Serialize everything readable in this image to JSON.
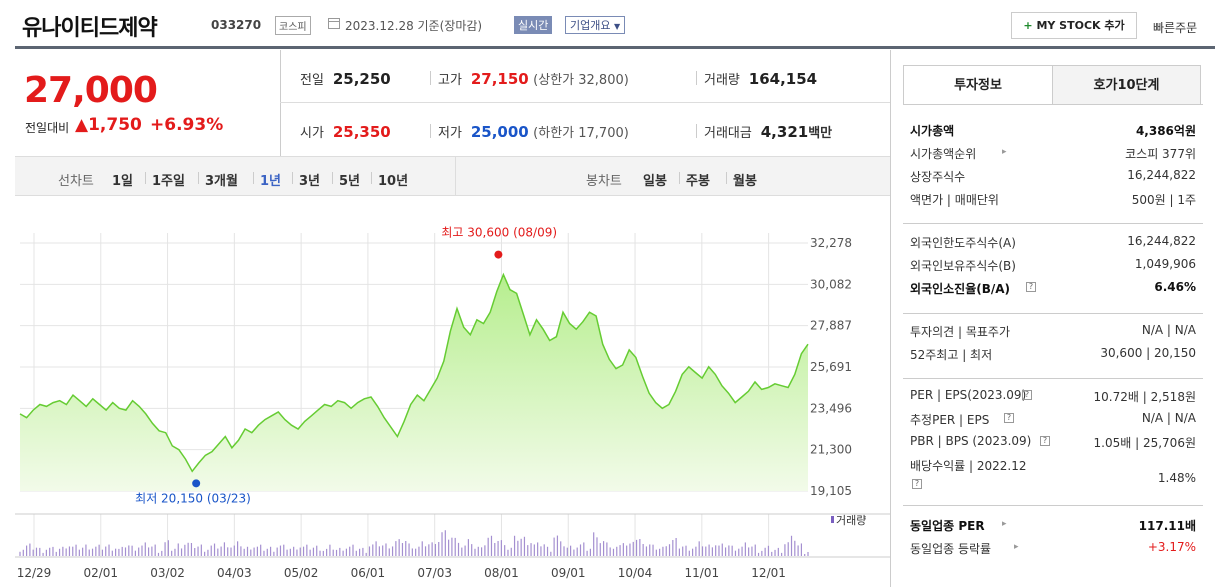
{
  "header": {
    "company_name": "유나이티드제약",
    "code": "033270",
    "market": "코스피",
    "basis": "2023.12.28  기준(장마감)",
    "realtime": "실시간",
    "overview": "기업개요",
    "my_stock": "MY STOCK 추가",
    "quick_order": "빠른주문"
  },
  "quote": {
    "price": "27,000",
    "change_label": "전일대비",
    "change_value": "1,750",
    "change_pct": "+6.93%",
    "prev_label": "전일",
    "prev": "25,250",
    "high_label": "고가",
    "high": "27,150",
    "upper_limit": "(상한가 32,800)",
    "volume_label": "거래량",
    "volume": "164,154",
    "open_label": "시가",
    "open": "25,350",
    "low_label": "저가",
    "low": "25,000",
    "lower_limit": "(하한가 17,700)",
    "amount_label": "거래대금",
    "amount": "4,321",
    "amount_unit": "백만"
  },
  "period_bar": {
    "line_label": "선차트",
    "line_items": [
      "1일",
      "1주일",
      "3개월",
      "1년",
      "3년",
      "5년",
      "10년"
    ],
    "selected": "1년",
    "candle_label": "봉차트",
    "candle_items": [
      "일봉",
      "주봉",
      "월봉"
    ]
  },
  "chart_data": {
    "type": "area",
    "y_ticks": [
      "32,278",
      "30,082",
      "27,887",
      "25,691",
      "23,496",
      "21,300",
      "19,105"
    ],
    "ylim": [
      19105,
      32278
    ],
    "x_ticks": [
      "12/29",
      "02/01",
      "03/02",
      "04/03",
      "05/02",
      "06/01",
      "07/03",
      "08/01",
      "09/01",
      "10/04",
      "11/01",
      "12/01"
    ],
    "high_label": "최고 30,600 (08/09)",
    "low_label": "최저 20,150 (03/23)",
    "volume_label": "거래량",
    "series": [
      {
        "values": [
          23200,
          23000,
          23400,
          23700,
          23600,
          23800,
          23900,
          23700,
          24200,
          23900,
          23600,
          24000,
          23700,
          23400,
          23800,
          23500,
          23400,
          23900,
          23600,
          23200,
          22700,
          22300,
          22200,
          21500,
          21300,
          20800,
          20150,
          20600,
          21000,
          21200,
          21600,
          22000,
          21400,
          21800,
          22400,
          22200,
          22600,
          22900,
          23100,
          23300,
          22900,
          22600,
          22400,
          22800,
          23100,
          23400,
          23700,
          23600,
          23900,
          23800,
          23500,
          23800,
          24000,
          24100,
          23600,
          23000,
          22500,
          22000,
          22800,
          23700,
          24200,
          23900,
          24500,
          25100,
          26000,
          27600,
          28800,
          27800,
          27400,
          28200,
          28000,
          28600,
          29700,
          30600,
          29800,
          29600,
          28500,
          27400,
          28200,
          27700,
          27100,
          27300,
          28600,
          28000,
          27700,
          28100,
          28600,
          28400,
          26900,
          26100,
          25600,
          25800,
          26600,
          26200,
          25200,
          24300,
          23800,
          23500,
          23700,
          24400,
          25300,
          25700,
          25400,
          25100,
          25700,
          25300,
          24700,
          24300,
          23800,
          24100,
          24400,
          24900,
          24500,
          24600,
          24800,
          24700,
          24600,
          25300,
          26400,
          26900
        ]
      }
    ]
  },
  "right_panel": {
    "tabs": [
      "투자정보",
      "호가10단계"
    ],
    "rows1": [
      {
        "k": "시가총액",
        "v": "4,386억원"
      },
      {
        "k": "시가총액순위",
        "v": "코스피 377위"
      },
      {
        "k": "상장주식수",
        "v": "16,244,822"
      },
      {
        "k": "액면가 | 매매단위",
        "v": "500원 | 1주"
      }
    ],
    "rows2": [
      {
        "k": "외국인한도주식수(A)",
        "v": "16,244,822"
      },
      {
        "k": "외국인보유주식수(B)",
        "v": "1,049,906"
      },
      {
        "k": "외국인소진율(B/A)",
        "v": "6.46%"
      }
    ],
    "rows3": [
      {
        "k": "투자의견 | 목표주가",
        "v": "N/A | N/A"
      },
      {
        "k": "52주최고 | 최저",
        "v": "30,600 | 20,150"
      }
    ],
    "rows4": [
      {
        "k": "PER | EPS(2023.09)",
        "v": "10.72배 | 2,518원"
      },
      {
        "k": "추정PER | EPS",
        "v": "N/A | N/A"
      },
      {
        "k": "PBR | BPS (2023.09)",
        "v": "1.05배 | 25,706원"
      },
      {
        "k": "배당수익률 | 2022.12",
        "v": "1.48%"
      }
    ],
    "rows5": [
      {
        "k": "동일업종 PER",
        "v": "117.11배"
      },
      {
        "k": "동일업종 등락률",
        "v": "+3.17%"
      }
    ]
  }
}
